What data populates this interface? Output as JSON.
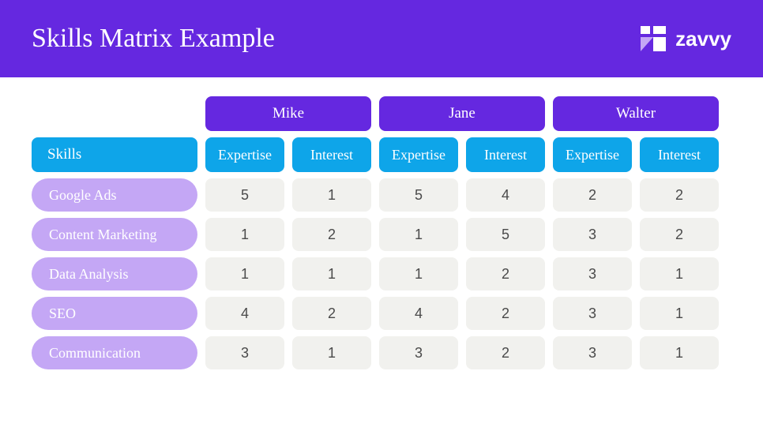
{
  "header": {
    "title": "Skills Matrix Example",
    "brand": "zavvy"
  },
  "table": {
    "skills_label": "Skills",
    "people": [
      "Mike",
      "Jane",
      "Walter"
    ],
    "sub_headers": [
      "Expertise",
      "Interest"
    ],
    "skills": [
      "Google Ads",
      "Content Marketing",
      "Data Analysis",
      "SEO",
      "Communication"
    ],
    "values": [
      [
        5,
        1,
        5,
        4,
        2,
        2
      ],
      [
        1,
        2,
        1,
        5,
        3,
        2
      ],
      [
        1,
        1,
        1,
        2,
        3,
        1
      ],
      [
        4,
        2,
        4,
        2,
        3,
        1
      ],
      [
        3,
        1,
        3,
        2,
        3,
        1
      ]
    ]
  },
  "colors": {
    "primary_purple": "#6528e0",
    "blue": "#0ea5e9",
    "pill": "#c4a7f5",
    "cell_bg": "#f1f1ee",
    "cell_text": "#4a4a4a",
    "white": "#ffffff"
  }
}
